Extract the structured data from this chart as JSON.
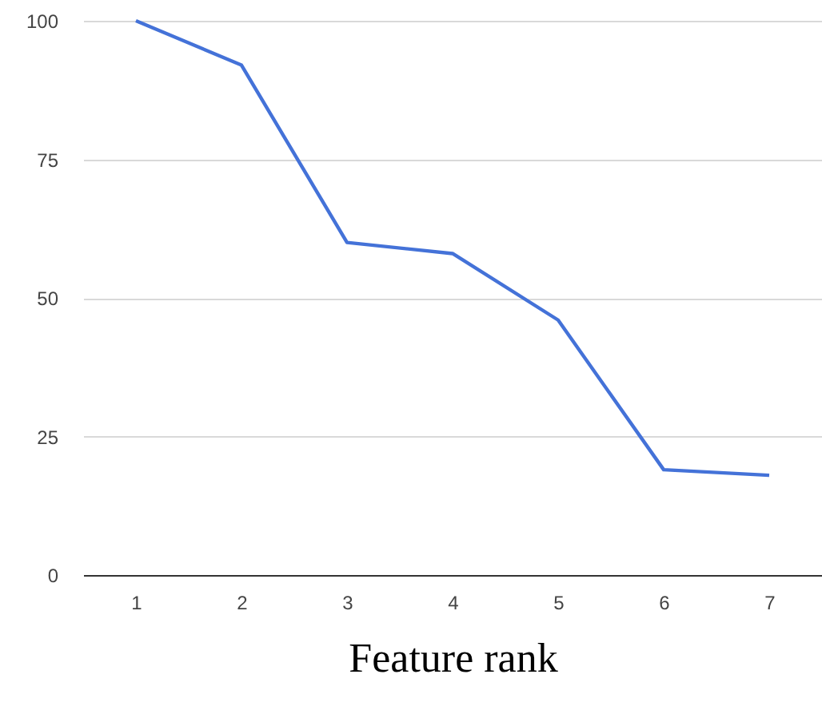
{
  "chart_data": {
    "type": "line",
    "xlabel": "Feature rank",
    "categories": [
      "1",
      "2",
      "3",
      "4",
      "5",
      "6",
      "7"
    ],
    "series": [
      {
        "color": "#4472d8",
        "values": [
          100,
          92,
          60,
          58,
          46,
          19,
          18
        ]
      }
    ],
    "ylim": [
      0,
      100
    ],
    "yticks": [
      0,
      25,
      50,
      75,
      100
    ],
    "grid": "y",
    "marker": "none",
    "line_style": "solid"
  }
}
